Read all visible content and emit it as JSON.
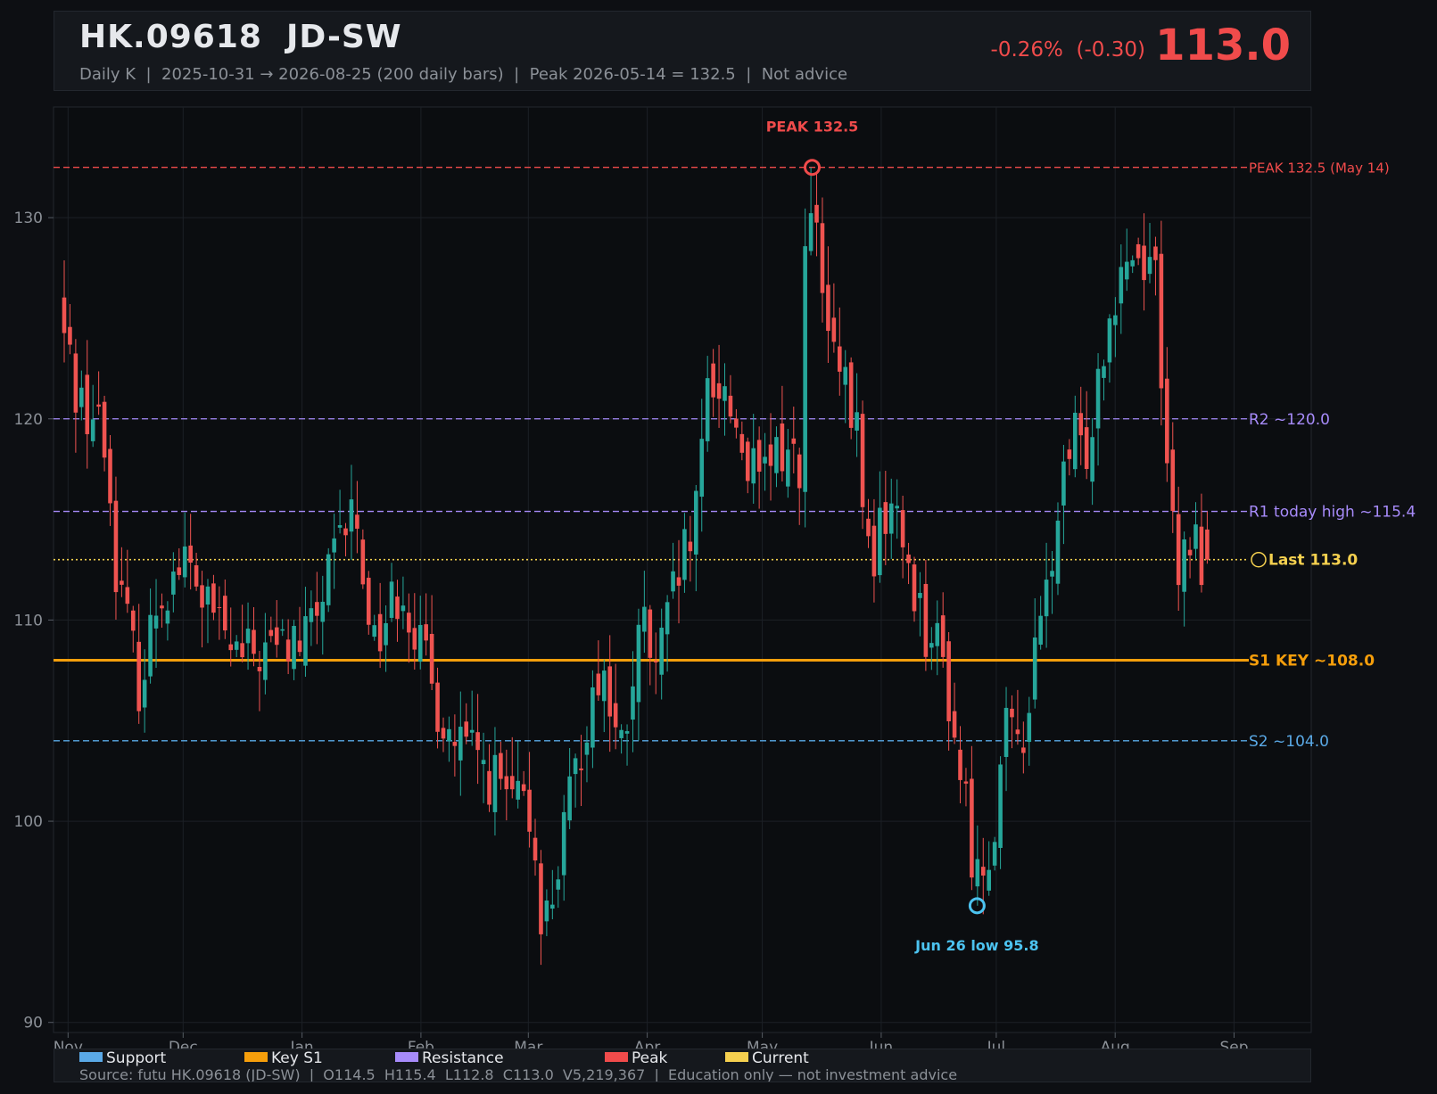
{
  "header": {
    "title": "HK.09618  JD-SW",
    "subtitle": "Daily K  |  2025-10-31 → 2026-08-25 (200 daily bars)  |  Peak 2026-05-14 = 132.5  |  Not advice",
    "change": "-0.26%  (-0.30)",
    "price": "113.0"
  },
  "chart_data": {
    "type": "candlestick",
    "ylim": [
      89.5,
      135.5
    ],
    "yticks": [
      "90",
      "100",
      "110",
      "120",
      "130"
    ],
    "xticks": [
      "Nov",
      "Dec",
      "Jan",
      "Feb",
      "Mar",
      "Apr",
      "May",
      "Jun",
      "Jul",
      "Aug",
      "Sep"
    ],
    "levels": [
      {
        "name": "peak",
        "value": 132.5,
        "label": "PEAK 132.5 (May 14)",
        "color": "#f04b4b",
        "style": "dashed"
      },
      {
        "name": "r2",
        "value": 120.0,
        "label": "R2 ~120.0",
        "color": "#a78bfa",
        "style": "dashed"
      },
      {
        "name": "r1",
        "value": 115.4,
        "label": "R1 today high ~115.4",
        "color": "#a78bfa",
        "style": "dashed"
      },
      {
        "name": "last",
        "value": 113.0,
        "label": "Last 113.0",
        "color": "#f5d04f",
        "style": "dotted"
      },
      {
        "name": "s1",
        "value": 108.0,
        "label": "S1 KEY ~108.0",
        "color": "#f59e0b",
        "style": "solid"
      },
      {
        "name": "s2",
        "value": 104.0,
        "label": "S2 ~104.0",
        "color": "#5aa9e6",
        "style": "dashed"
      }
    ],
    "annotations": [
      {
        "name": "peak",
        "text": "PEAK 132.5",
        "value": 132.5,
        "color": "#f04b4b"
      },
      {
        "name": "low",
        "text": "Jun 26 low 95.8",
        "value": 95.8,
        "color": "#4cc3f0"
      }
    ],
    "anchors": [
      {
        "date": "2025-10-31",
        "close": 124.0
      },
      {
        "date": "2025-11-04",
        "close": 121.0
      },
      {
        "date": "2025-11-10",
        "close": 119.5
      },
      {
        "date": "2025-11-14",
        "close": 112.0
      },
      {
        "date": "2025-11-20",
        "close": 106.5
      },
      {
        "date": "2025-11-24",
        "close": 111.0
      },
      {
        "date": "2025-12-01",
        "close": 113.0
      },
      {
        "date": "2025-12-05",
        "close": 111.5
      },
      {
        "date": "2025-12-12",
        "close": 109.0
      },
      {
        "date": "2025-12-16",
        "close": 108.0
      },
      {
        "date": "2025-12-23",
        "close": 108.5
      },
      {
        "date": "2026-01-02",
        "close": 109.0
      },
      {
        "date": "2026-01-08",
        "close": 112.0
      },
      {
        "date": "2026-01-14",
        "close": 115.5
      },
      {
        "date": "2026-01-20",
        "close": 109.0
      },
      {
        "date": "2026-01-27",
        "close": 112.0
      },
      {
        "date": "2026-02-03",
        "close": 107.0
      },
      {
        "date": "2026-02-09",
        "close": 104.0
      },
      {
        "date": "2026-02-16",
        "close": 103.0
      },
      {
        "date": "2026-02-24",
        "close": 101.0
      },
      {
        "date": "2026-03-02",
        "close": 100.0
      },
      {
        "date": "2026-03-05",
        "close": 94.5
      },
      {
        "date": "2026-03-10",
        "close": 99.0
      },
      {
        "date": "2026-03-16",
        "close": 105.0
      },
      {
        "date": "2026-03-20",
        "close": 108.0
      },
      {
        "date": "2026-03-25",
        "close": 103.0
      },
      {
        "date": "2026-03-31",
        "close": 110.0
      },
      {
        "date": "2026-04-03",
        "close": 107.0
      },
      {
        "date": "2026-04-09",
        "close": 112.0
      },
      {
        "date": "2026-04-14",
        "close": 115.0
      },
      {
        "date": "2026-04-17",
        "close": 122.5
      },
      {
        "date": "2026-04-22",
        "close": 121.0
      },
      {
        "date": "2026-04-27",
        "close": 118.0
      },
      {
        "date": "2026-04-30",
        "close": 116.5
      },
      {
        "date": "2026-05-06",
        "close": 118.5
      },
      {
        "date": "2026-05-11",
        "close": 118.0
      },
      {
        "date": "2026-05-12",
        "close": 127.5
      },
      {
        "date": "2026-05-14",
        "close": 130.5
      },
      {
        "date": "2026-05-18",
        "close": 124.0
      },
      {
        "date": "2026-05-21",
        "close": 122.0
      },
      {
        "date": "2026-05-26",
        "close": 119.0
      },
      {
        "date": "2026-05-29",
        "close": 112.5
      },
      {
        "date": "2026-06-03",
        "close": 116.0
      },
      {
        "date": "2026-06-08",
        "close": 113.0
      },
      {
        "date": "2026-06-12",
        "close": 110.0
      },
      {
        "date": "2026-06-17",
        "close": 108.0
      },
      {
        "date": "2026-06-22",
        "close": 102.0
      },
      {
        "date": "2026-06-26",
        "close": 97.0
      },
      {
        "date": "2026-06-30",
        "close": 99.5
      },
      {
        "date": "2026-07-03",
        "close": 104.0
      },
      {
        "date": "2026-07-08",
        "close": 104.5
      },
      {
        "date": "2026-07-13",
        "close": 110.0
      },
      {
        "date": "2026-07-17",
        "close": 115.0
      },
      {
        "date": "2026-07-21",
        "close": 119.0
      },
      {
        "date": "2026-07-24",
        "close": 118.0
      },
      {
        "date": "2026-07-29",
        "close": 124.0
      },
      {
        "date": "2026-08-03",
        "close": 128.5
      },
      {
        "date": "2026-08-07",
        "close": 128.0
      },
      {
        "date": "2026-08-11",
        "close": 128.5
      },
      {
        "date": "2026-08-13",
        "close": 123.0
      },
      {
        "date": "2026-08-17",
        "close": 111.0
      },
      {
        "date": "2026-08-20",
        "close": 114.0
      },
      {
        "date": "2026-08-25",
        "close": 113.0
      }
    ]
  },
  "legend": [
    {
      "label": "Support",
      "color": "#5aa9e6"
    },
    {
      "label": "Key S1",
      "color": "#f59e0b"
    },
    {
      "label": "Resistance",
      "color": "#a78bfa"
    },
    {
      "label": "Peak",
      "color": "#f04b4b"
    },
    {
      "label": "Current",
      "color": "#f5d04f"
    }
  ],
  "footer": {
    "source": "Source: futu HK.09618 (JD-SW)  |  O114.5  H115.4  L112.8  C113.0  V5,219,367  |  Education only — not investment advice"
  }
}
